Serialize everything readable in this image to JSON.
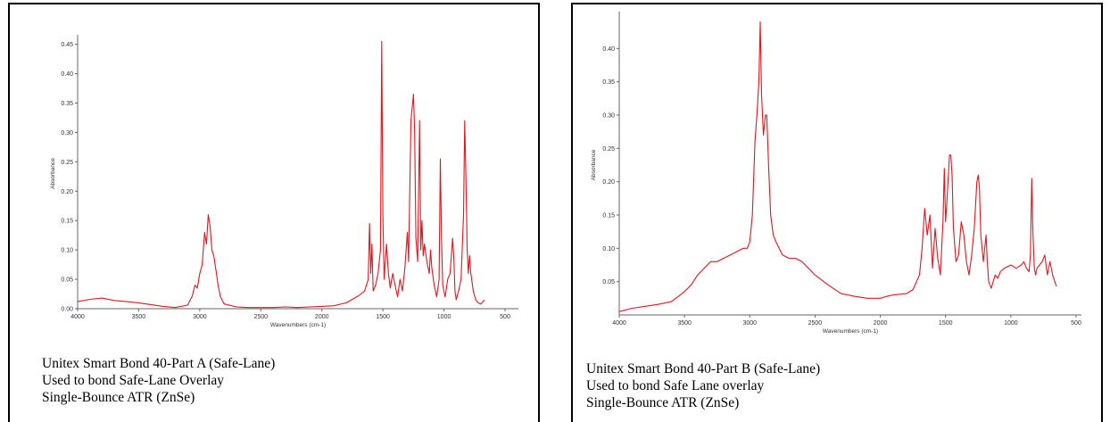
{
  "chart_data": [
    {
      "type": "line",
      "title": "",
      "xlabel": "Wavenumbers (cm-1)",
      "ylabel": "Absorbance",
      "xlim": [
        4000,
        650
      ],
      "ylim": [
        0,
        0.46
      ],
      "x_reversed": true,
      "grid": false,
      "color": "#e8141c",
      "xticks": [
        4000,
        3500,
        3000,
        2500,
        2000,
        1500,
        1000,
        500
      ],
      "yticks": [
        0.0,
        0.05,
        0.1,
        0.15,
        0.2,
        0.25,
        0.3,
        0.35,
        0.4,
        0.45
      ],
      "ytick_labels": [
        "0.00",
        "0.05",
        "0.10",
        "0.15",
        "0.20",
        "0.25",
        "0.30",
        "0.35",
        "0.40",
        "0.45"
      ],
      "series": [
        {
          "x": [
            4000,
            3900,
            3800,
            3700,
            3600,
            3500,
            3400,
            3300,
            3200,
            3100,
            3060,
            3040,
            3020,
            3000,
            2980,
            2960,
            2945,
            2930,
            2915,
            2900,
            2885,
            2870,
            2850,
            2830,
            2800,
            2700,
            2600,
            2500,
            2400,
            2300,
            2200,
            2100,
            2000,
            1900,
            1800,
            1700,
            1650,
            1620,
            1610,
            1600,
            1590,
            1580,
            1560,
            1540,
            1520,
            1510,
            1500,
            1490,
            1470,
            1455,
            1440,
            1420,
            1400,
            1380,
            1360,
            1340,
            1320,
            1300,
            1290,
            1270,
            1250,
            1240,
            1230,
            1215,
            1200,
            1190,
            1180,
            1170,
            1160,
            1140,
            1120,
            1110,
            1100,
            1080,
            1060,
            1040,
            1030,
            1020,
            1010,
            990,
            970,
            950,
            930,
            920,
            910,
            900,
            880,
            860,
            840,
            830,
            820,
            810,
            800,
            790,
            780,
            760,
            740,
            720,
            700,
            680,
            670
          ],
          "y": [
            0.012,
            0.016,
            0.018,
            0.014,
            0.012,
            0.01,
            0.007,
            0.004,
            0.002,
            0.006,
            0.022,
            0.04,
            0.035,
            0.06,
            0.075,
            0.13,
            0.11,
            0.16,
            0.14,
            0.1,
            0.09,
            0.07,
            0.04,
            0.02,
            0.008,
            0.003,
            0.002,
            0.002,
            0.002,
            0.003,
            0.002,
            0.003,
            0.004,
            0.005,
            0.01,
            0.022,
            0.03,
            0.05,
            0.145,
            0.06,
            0.11,
            0.03,
            0.04,
            0.06,
            0.1,
            0.455,
            0.16,
            0.05,
            0.11,
            0.06,
            0.035,
            0.06,
            0.04,
            0.02,
            0.05,
            0.03,
            0.07,
            0.13,
            0.08,
            0.32,
            0.365,
            0.3,
            0.12,
            0.08,
            0.32,
            0.1,
            0.15,
            0.09,
            0.11,
            0.08,
            0.06,
            0.1,
            0.07,
            0.04,
            0.02,
            0.05,
            0.255,
            0.12,
            0.04,
            0.02,
            0.05,
            0.06,
            0.12,
            0.09,
            0.03,
            0.015,
            0.03,
            0.05,
            0.16,
            0.32,
            0.22,
            0.1,
            0.06,
            0.09,
            0.06,
            0.03,
            0.015,
            0.01,
            0.008,
            0.012,
            0.015
          ]
        }
      ]
    },
    {
      "type": "line",
      "title": "",
      "xlabel": "Wavenumbers (cm-1)",
      "ylabel": "Absorbance",
      "xlim": [
        4000,
        650
      ],
      "ylim": [
        0,
        0.45
      ],
      "x_reversed": true,
      "grid": false,
      "color": "#e8141c",
      "xticks": [
        4000,
        3500,
        3000,
        2500,
        2000,
        1500,
        1000,
        500
      ],
      "yticks": [
        0.05,
        0.1,
        0.15,
        0.2,
        0.25,
        0.3,
        0.35,
        0.4
      ],
      "ytick_labels": [
        "0.05",
        "0.10",
        "0.15",
        "0.20",
        "0.25",
        "0.30",
        "0.35",
        "0.40"
      ],
      "series": [
        {
          "x": [
            4000,
            3900,
            3800,
            3700,
            3600,
            3500,
            3450,
            3400,
            3350,
            3300,
            3250,
            3200,
            3100,
            3050,
            3020,
            3000,
            2980,
            2960,
            2945,
            2930,
            2920,
            2910,
            2895,
            2880,
            2870,
            2855,
            2840,
            2820,
            2800,
            2750,
            2700,
            2650,
            2600,
            2550,
            2500,
            2400,
            2300,
            2200,
            2100,
            2000,
            1950,
            1900,
            1800,
            1750,
            1700,
            1680,
            1660,
            1640,
            1620,
            1600,
            1580,
            1560,
            1540,
            1520,
            1510,
            1500,
            1490,
            1470,
            1460,
            1450,
            1440,
            1420,
            1400,
            1380,
            1360,
            1340,
            1320,
            1300,
            1280,
            1260,
            1250,
            1240,
            1230,
            1210,
            1190,
            1180,
            1170,
            1150,
            1120,
            1100,
            1080,
            1050,
            1000,
            960,
            920,
            900,
            880,
            860,
            850,
            840,
            830,
            820,
            810,
            800,
            780,
            760,
            740,
            720,
            700,
            680,
            660,
            650
          ],
          "y": [
            0.005,
            0.01,
            0.013,
            0.016,
            0.02,
            0.035,
            0.045,
            0.06,
            0.07,
            0.08,
            0.08,
            0.085,
            0.095,
            0.1,
            0.1,
            0.11,
            0.15,
            0.26,
            0.3,
            0.35,
            0.44,
            0.33,
            0.27,
            0.3,
            0.3,
            0.22,
            0.15,
            0.12,
            0.11,
            0.09,
            0.085,
            0.085,
            0.08,
            0.07,
            0.06,
            0.045,
            0.032,
            0.028,
            0.025,
            0.025,
            0.028,
            0.03,
            0.032,
            0.038,
            0.06,
            0.1,
            0.16,
            0.12,
            0.15,
            0.07,
            0.13,
            0.085,
            0.06,
            0.14,
            0.22,
            0.14,
            0.17,
            0.24,
            0.24,
            0.21,
            0.13,
            0.08,
            0.09,
            0.14,
            0.12,
            0.08,
            0.06,
            0.09,
            0.13,
            0.2,
            0.21,
            0.19,
            0.12,
            0.08,
            0.12,
            0.08,
            0.05,
            0.04,
            0.06,
            0.055,
            0.065,
            0.07,
            0.075,
            0.07,
            0.075,
            0.08,
            0.07,
            0.065,
            0.09,
            0.205,
            0.12,
            0.07,
            0.06,
            0.07,
            0.075,
            0.08,
            0.09,
            0.06,
            0.08,
            0.06,
            0.048,
            0.043
          ]
        }
      ]
    }
  ],
  "captions": [
    {
      "line1": "Unitex Smart Bond 40-Part A (Safe-Lane)",
      "line2": "Used to bond Safe-Lane Overlay",
      "line3": "Single-Bounce ATR (ZnSe)"
    },
    {
      "line1": "Unitex Smart Bond 40-Part B (Safe-Lane)",
      "line2": "Used to bond Safe Lane overlay",
      "line3": "Single-Bounce ATR (ZnSe)"
    }
  ]
}
